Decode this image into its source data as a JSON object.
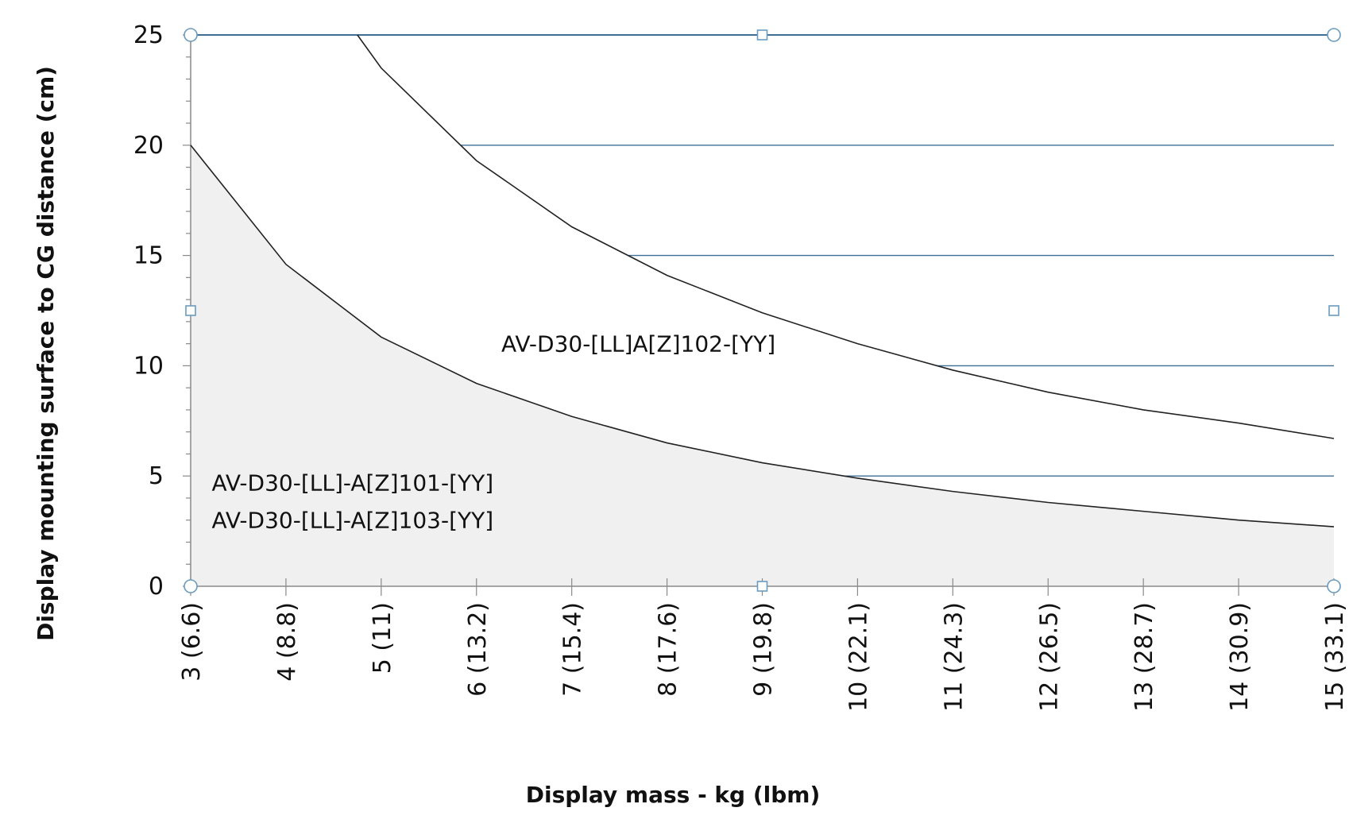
{
  "chart_data": {
    "type": "line",
    "xlabel": "Display mass - kg (lbm)",
    "ylabel": "Display mounting surface to CG distance (cm)",
    "xlim": [
      3,
      15
    ],
    "ylim": [
      0,
      25
    ],
    "x_tick_labels": [
      "3 (6.6)",
      "4 (8.8)",
      "5 (11)",
      "6 (13.2)",
      "7 (15.4)",
      "8 (17.6)",
      "9 (19.8)",
      "10 (22.1)",
      "11 (24.3)",
      "12 (26.5)",
      "13 (28.7)",
      "14 (30.9)",
      "15 (33.1)"
    ],
    "y_ticks": [
      0,
      5,
      10,
      15,
      20,
      25
    ],
    "x": [
      3,
      4,
      5,
      6,
      7,
      8,
      9,
      10,
      11,
      12,
      13,
      14,
      15
    ],
    "series": [
      {
        "values": [
          20.0,
          14.6,
          11.3,
          9.2,
          7.7,
          6.5,
          5.6,
          4.9,
          4.3,
          3.8,
          3.4,
          3.0,
          2.7
        ]
      },
      {
        "values": [
          null,
          null,
          23.5,
          19.3,
          16.3,
          14.1,
          12.4,
          11.0,
          9.8,
          8.8,
          8.0,
          7.4,
          6.7
        ]
      }
    ],
    "upper_curve_start": [
      4.75,
      25
    ],
    "annotations": [
      {
        "text": "AV-D30-[LL]A[Z]102-[YY]",
        "x": 7.7,
        "y": 11.0
      },
      {
        "text": "AV-D30-[LL]-A[Z]101-[YY]",
        "x": 4.7,
        "y": 4.7
      },
      {
        "text": "AV-D30-[LL]-A[Z]103-[YY]",
        "x": 4.7,
        "y": 3.0
      }
    ],
    "grid": true,
    "colors": {
      "gridline": "#3f6f94",
      "curve": "#222222",
      "fill": "#f0f0f0",
      "handle_stroke": "#6a9bc0"
    }
  }
}
